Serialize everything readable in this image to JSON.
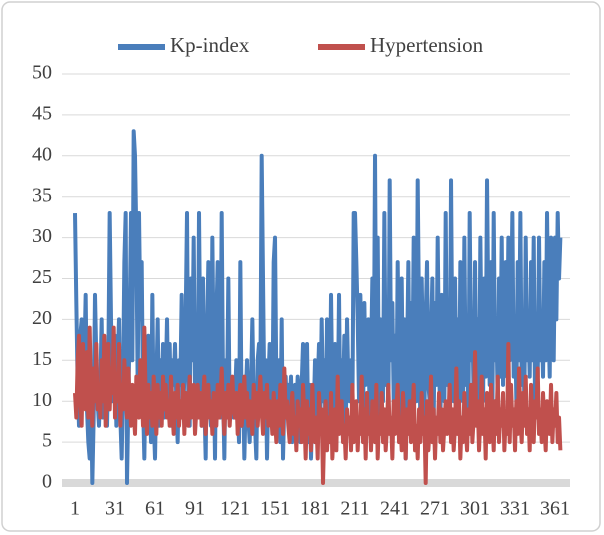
{
  "chart_data": {
    "type": "line",
    "x": [
      1,
      2,
      3,
      4,
      5,
      6,
      7,
      8,
      9,
      10,
      11,
      12,
      13,
      14,
      15,
      16,
      17,
      18,
      19,
      20,
      21,
      22,
      23,
      24,
      25,
      26,
      27,
      28,
      29,
      30,
      31,
      32,
      33,
      34,
      35,
      36,
      37,
      38,
      39,
      40,
      41,
      42,
      43,
      44,
      45,
      46,
      47,
      48,
      49,
      50,
      51,
      52,
      53,
      54,
      55,
      56,
      57,
      58,
      59,
      60,
      61,
      62,
      63,
      64,
      65,
      66,
      67,
      68,
      69,
      70,
      71,
      72,
      73,
      74,
      75,
      76,
      77,
      78,
      79,
      80,
      81,
      82,
      83,
      84,
      85,
      86,
      87,
      88,
      89,
      90,
      91,
      92,
      93,
      94,
      95,
      96,
      97,
      98,
      99,
      100,
      101,
      102,
      103,
      104,
      105,
      106,
      107,
      108,
      109,
      110,
      111,
      112,
      113,
      114,
      115,
      116,
      117,
      118,
      119,
      120,
      121,
      122,
      123,
      124,
      125,
      126,
      127,
      128,
      129,
      130,
      131,
      132,
      133,
      134,
      135,
      136,
      137,
      138,
      139,
      140,
      141,
      142,
      143,
      144,
      145,
      146,
      147,
      148,
      149,
      150,
      151,
      152,
      153,
      154,
      155,
      156,
      157,
      158,
      159,
      160,
      161,
      162,
      163,
      164,
      165,
      166,
      167,
      168,
      169,
      170,
      171,
      172,
      173,
      174,
      175,
      176,
      177,
      178,
      179,
      180,
      181,
      182,
      183,
      184,
      185,
      186,
      187,
      188,
      189,
      190,
      191,
      192,
      193,
      194,
      195,
      196,
      197,
      198,
      199,
      200,
      201,
      202,
      203,
      204,
      205,
      206,
      207,
      208,
      209,
      210,
      211,
      212,
      213,
      214,
      215,
      216,
      217,
      218,
      219,
      220,
      221,
      222,
      223,
      224,
      225,
      226,
      227,
      228,
      229,
      230,
      231,
      232,
      233,
      234,
      235,
      236,
      237,
      238,
      239,
      240,
      241,
      242,
      243,
      244,
      245,
      246,
      247,
      248,
      249,
      250,
      251,
      252,
      253,
      254,
      255,
      256,
      257,
      258,
      259,
      260,
      261,
      262,
      263,
      264,
      265,
      266,
      267,
      268,
      269,
      270,
      271,
      272,
      273,
      274,
      275,
      276,
      277,
      278,
      279,
      280,
      281,
      282,
      283,
      284,
      285,
      286,
      287,
      288,
      289,
      290,
      291,
      292,
      293,
      294,
      295,
      296,
      297,
      298,
      299,
      300,
      301,
      302,
      303,
      304,
      305,
      306,
      307,
      308,
      309,
      310,
      311,
      312,
      313,
      314,
      315,
      316,
      317,
      318,
      319,
      320,
      321,
      322,
      323,
      324,
      325,
      326,
      327,
      328,
      329,
      330,
      331,
      332,
      333,
      334,
      335,
      336,
      337,
      338,
      339,
      340,
      341,
      342,
      343,
      344,
      345,
      346,
      347,
      348,
      349,
      350,
      351,
      352,
      353,
      354,
      355,
      356,
      357,
      358,
      359,
      360,
      361,
      362,
      363,
      364,
      365
    ],
    "series": [
      {
        "name": "Kp-index",
        "color": "#4a7ebb",
        "values": [
          33,
          22,
          12,
          7,
          18,
          20,
          10,
          15,
          23,
          9,
          5,
          3,
          12,
          0,
          8,
          23,
          15,
          10,
          7,
          12,
          20,
          8,
          13,
          17,
          7,
          15,
          33,
          20,
          10,
          12,
          18,
          7,
          15,
          20,
          8,
          3,
          12,
          27,
          33,
          0,
          10,
          20,
          33,
          15,
          43,
          40,
          30,
          12,
          33,
          20,
          27,
          10,
          3,
          15,
          7,
          18,
          12,
          5,
          23,
          8,
          3,
          12,
          20,
          7,
          15,
          10,
          17,
          8,
          12,
          20,
          10,
          17,
          7,
          15,
          12,
          17,
          10,
          5,
          15,
          12,
          23,
          8,
          13,
          20,
          33,
          10,
          7,
          25,
          15,
          30,
          12,
          20,
          8,
          33,
          15,
          7,
          25,
          10,
          3,
          18,
          27,
          12,
          7,
          30,
          15,
          3,
          20,
          27,
          10,
          8,
          33,
          12,
          3,
          15,
          10,
          25,
          8,
          12,
          10,
          8,
          10,
          15,
          10,
          5,
          27,
          7,
          12,
          3,
          10,
          15,
          8,
          5,
          12,
          20,
          10,
          7,
          3,
          15,
          17,
          12,
          40,
          25,
          10,
          15,
          3,
          12,
          17,
          10,
          8,
          27,
          30,
          12,
          7,
          15,
          5,
          20,
          3,
          10,
          13,
          8,
          12,
          10,
          13,
          5,
          10,
          12,
          8,
          13,
          10,
          5,
          12,
          17,
          8,
          10,
          17,
          5,
          12,
          3,
          10,
          8,
          15,
          5,
          12,
          17,
          8,
          20,
          10,
          15,
          5,
          20,
          12,
          8,
          23,
          10,
          5,
          17,
          12,
          8,
          23,
          7,
          15,
          10,
          18,
          5,
          20,
          12,
          10,
          15,
          8,
          33,
          33,
          27,
          20,
          10,
          23,
          15,
          8,
          22,
          12,
          18,
          20,
          7,
          15,
          25,
          10,
          40,
          12,
          30,
          8,
          20,
          15,
          10,
          33,
          12,
          20,
          8,
          37,
          15,
          22,
          10,
          18,
          8,
          27,
          12,
          7,
          25,
          10,
          20,
          3,
          15,
          27,
          8,
          22,
          12,
          30,
          15,
          10,
          37,
          20,
          7,
          25,
          15,
          8,
          20,
          27,
          12,
          10,
          18,
          25,
          8,
          22,
          12,
          30,
          15,
          7,
          23,
          17,
          10,
          33,
          12,
          20,
          8,
          37,
          15,
          10,
          25,
          12,
          20,
          8,
          27,
          15,
          10,
          30,
          12,
          20,
          7,
          33,
          15,
          20,
          10,
          27,
          12,
          20,
          8,
          30,
          15,
          10,
          25,
          13,
          37,
          20,
          12,
          27,
          8,
          33,
          15,
          20,
          10,
          25,
          13,
          30,
          12,
          20,
          27,
          13,
          30,
          15,
          20,
          33,
          13,
          20,
          10,
          27,
          15,
          33,
          12,
          20,
          10,
          30,
          15,
          20,
          13,
          27,
          15,
          30,
          10,
          20,
          13,
          30,
          15,
          20,
          13,
          27,
          15,
          33,
          20,
          13,
          30,
          22,
          15,
          30,
          20,
          33,
          25,
          30
        ]
      },
      {
        "name": "Hypertension",
        "color": "#c0504d",
        "values": [
          11,
          8,
          15,
          18,
          10,
          7,
          17,
          12,
          9,
          16,
          8,
          19,
          11,
          7,
          14,
          10,
          17,
          9,
          12,
          8,
          15,
          10,
          18,
          7,
          12,
          17,
          9,
          14,
          11,
          19,
          8,
          13,
          10,
          17,
          7,
          12,
          9,
          15,
          11,
          8,
          14,
          10,
          7,
          12,
          9,
          6,
          13,
          10,
          8,
          15,
          12,
          7,
          19,
          10,
          6,
          12,
          8,
          11,
          7,
          13,
          9,
          6,
          12,
          8,
          11,
          7,
          13,
          9,
          12,
          8,
          10,
          7,
          13,
          9,
          6,
          11,
          8,
          12,
          7,
          10,
          8,
          12,
          6,
          11,
          9,
          7,
          13,
          8,
          10,
          12,
          6,
          9,
          12,
          8,
          11,
          7,
          10,
          13,
          6,
          9,
          12,
          8,
          10,
          6,
          11,
          9,
          7,
          12,
          8,
          10,
          14,
          9,
          6,
          11,
          8,
          12,
          7,
          10,
          13,
          9,
          8,
          11,
          6,
          10,
          12,
          7,
          9,
          13,
          8,
          11,
          7,
          10,
          9,
          6,
          12,
          8,
          11,
          7,
          10,
          13,
          9,
          6,
          11,
          8,
          12,
          7,
          10,
          9,
          6,
          11,
          8,
          5,
          10,
          7,
          12,
          9,
          6,
          14,
          8,
          10,
          7,
          5,
          9,
          11,
          6,
          8,
          4,
          10,
          7,
          9,
          5,
          12,
          8,
          3,
          10,
          6,
          9,
          4,
          12,
          7,
          5,
          8,
          3,
          11,
          6,
          9,
          0,
          7,
          10,
          4,
          8,
          5,
          11,
          3,
          7,
          9,
          4,
          13,
          6,
          8,
          10,
          5,
          7,
          3,
          9,
          6,
          8,
          4,
          12,
          5,
          7,
          10,
          4,
          8,
          6,
          13,
          5,
          9,
          3,
          11,
          6,
          8,
          4,
          10,
          7,
          5,
          12,
          3,
          8,
          6,
          11,
          5,
          9,
          4,
          7,
          12,
          6,
          8,
          3,
          10,
          6,
          9,
          12,
          5,
          8,
          4,
          11,
          7,
          3,
          9,
          6,
          10,
          5,
          8,
          12,
          4,
          7,
          3,
          9,
          5,
          11,
          6,
          8,
          0,
          10,
          4,
          7,
          13,
          5,
          9,
          3,
          8,
          6,
          11,
          5,
          9,
          4,
          7,
          10,
          6,
          8,
          12,
          5,
          9,
          4,
          7,
          14,
          6,
          10,
          3,
          8,
          5,
          11,
          7,
          4,
          9,
          6,
          12,
          5,
          8,
          16,
          7,
          10,
          4,
          8,
          13,
          6,
          9,
          3,
          11,
          7,
          5,
          12,
          8,
          4,
          10,
          6,
          13,
          5,
          9,
          7,
          11,
          4,
          8,
          6,
          17,
          5,
          12,
          7,
          9,
          4,
          10,
          6,
          14,
          8,
          5,
          11,
          7,
          13,
          6,
          9,
          4,
          12,
          7,
          5,
          10,
          8,
          14,
          6,
          9,
          5,
          11,
          7,
          4,
          10,
          8,
          6,
          12,
          5,
          9,
          7,
          11,
          5,
          8,
          4
        ]
      }
    ],
    "xlim": [
      1,
      366
    ],
    "xticks": [
      1,
      31,
      61,
      91,
      121,
      151,
      181,
      211,
      241,
      271,
      301,
      331,
      361
    ],
    "ylim": [
      0,
      50
    ],
    "yticks": [
      0,
      5,
      10,
      15,
      20,
      25,
      30,
      35,
      40,
      45,
      50
    ],
    "grid": true,
    "legend": "top"
  }
}
